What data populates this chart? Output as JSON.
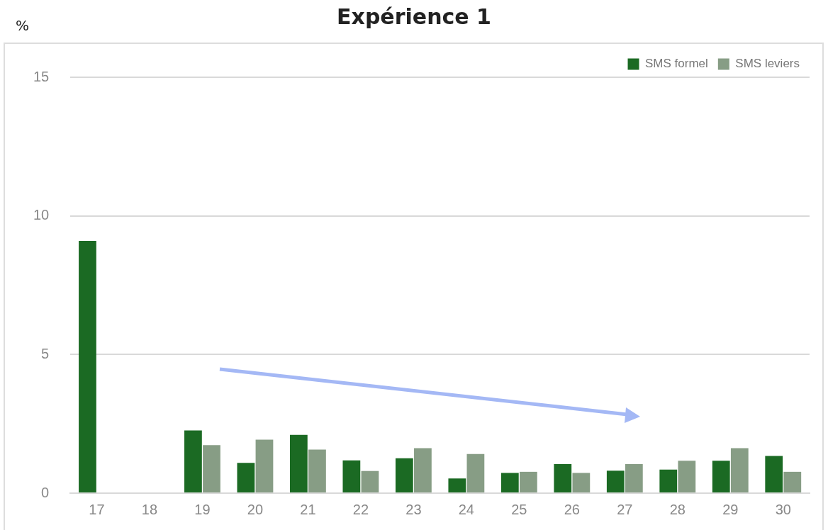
{
  "chart_data": {
    "type": "bar",
    "title": "Expérience 1",
    "ylabel": "%",
    "categories": [
      "17",
      "18",
      "19",
      "20",
      "21",
      "22",
      "23",
      "24",
      "25",
      "26",
      "27",
      "28",
      "29",
      "30"
    ],
    "series": [
      {
        "name": "SMS formel",
        "color": "#1b6a23",
        "values": [
          9.1,
          null,
          2.26,
          1.09,
          2.1,
          1.18,
          1.26,
          0.53,
          0.73,
          1.05,
          0.81,
          0.85,
          1.17,
          1.34
        ]
      },
      {
        "name": "SMS leviers",
        "color": "#879d85",
        "values": [
          null,
          null,
          1.73,
          1.93,
          1.57,
          0.8,
          1.62,
          1.41,
          0.77,
          0.73,
          1.05,
          1.17,
          1.62,
          0.77
        ]
      }
    ],
    "ylim": [
      0,
      15
    ],
    "yticks": [
      0,
      5,
      10,
      15
    ],
    "grid": "y",
    "legend": "top right"
  }
}
